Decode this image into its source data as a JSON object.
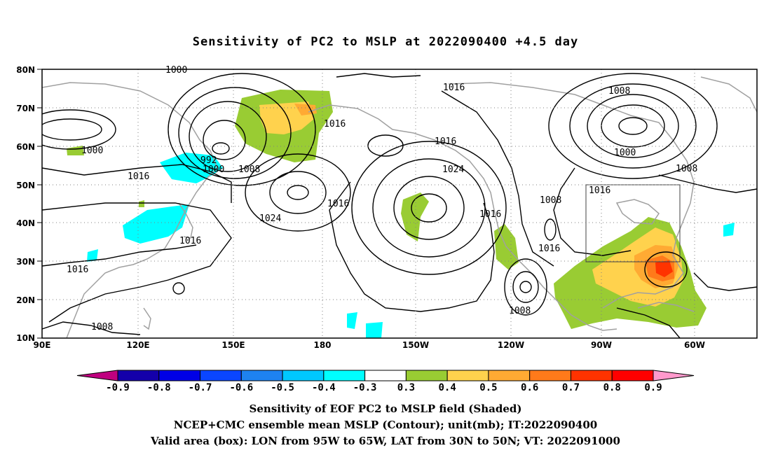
{
  "title": "Sensitivity of PC2 to MSLP at 2022090400 +4.5 day",
  "map": {
    "lat_labels": [
      "80N",
      "70N",
      "60N",
      "50N",
      "40N",
      "30N",
      "20N",
      "10N"
    ],
    "lon_labels": [
      "90E",
      "120E",
      "150E",
      "180",
      "150W",
      "120W",
      "90W",
      "60W"
    ],
    "contour_labels": [
      "1000",
      "1016",
      "1008",
      "1000",
      "1016",
      "992",
      "1000",
      "1008",
      "1016",
      "1024",
      "1016",
      "1016",
      "1024",
      "1016",
      "1008",
      "1000",
      "1008",
      "1016",
      "1008",
      "1016",
      "1016",
      "1008",
      "1016",
      "1008"
    ],
    "valid_box": {
      "lon_range": [
        "95W",
        "65W"
      ],
      "lat_range": [
        "30N",
        "50N"
      ]
    }
  },
  "colorbar": {
    "labels": [
      "-0.9",
      "-0.8",
      "-0.7",
      "-0.6",
      "-0.5",
      "-0.4",
      "-0.3",
      "0.3",
      "0.4",
      "0.5",
      "0.6",
      "0.7",
      "0.8",
      "0.9"
    ],
    "colors": [
      "#bf007f",
      "#1400aa",
      "#0000e6",
      "#0a46ff",
      "#1e82f0",
      "#00c8ff",
      "#00ffff",
      "#ffffff",
      "#99cc33",
      "#ffd24d",
      "#ffaa33",
      "#ff7a1a",
      "#ff3300",
      "#ff0000",
      "#ff99cc"
    ]
  },
  "captions": [
    "Sensitivity of EOF PC2 to MSLP field (Shaded)",
    "NCEP+CMC ensemble mean MSLP (Contour); unit(mb); IT:2022090400",
    "Valid area (box): LON from 95W to 65W, LAT from 30N to 50N; VT: 2022091000"
  ]
}
